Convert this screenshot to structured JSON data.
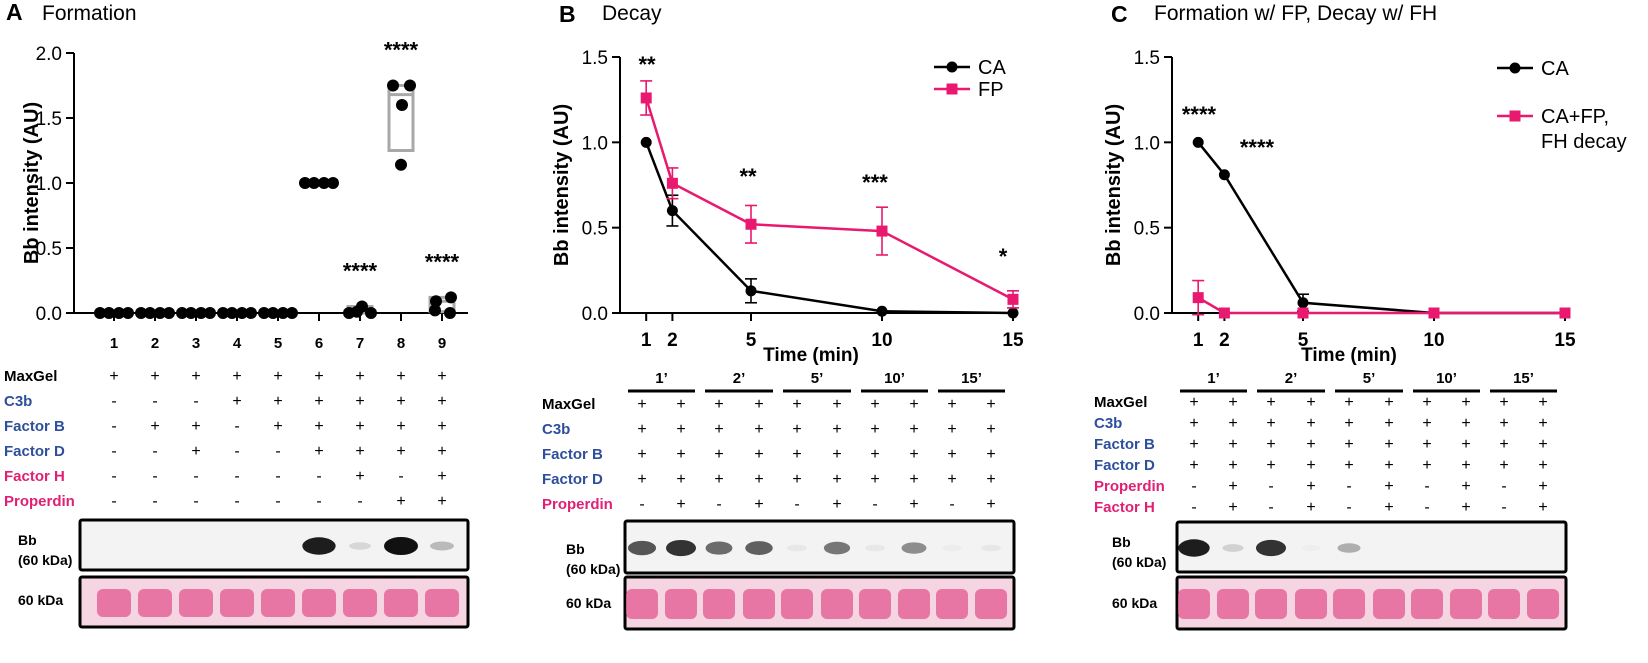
{
  "colors": {
    "black": "#000000",
    "magenta": "#e8196e",
    "blue": "#2e4f9c",
    "pink": "#e02075",
    "gray": "#a8a8a8",
    "pinkband": "#e3558f"
  },
  "panels": [
    {
      "letter": "A",
      "title": "Formation"
    },
    {
      "letter": "B",
      "title": "Decay"
    },
    {
      "letter": "C",
      "title": "Formation w/ FP, Decay w/ FH"
    }
  ],
  "chart_data": [
    {
      "type": "scatter",
      "title": "Formation",
      "xlabel": "",
      "ylabel": "Bb intensity (AU)",
      "ylim": [
        0,
        2.0
      ],
      "yticks": [
        "0.0",
        "0.5",
        "1.0",
        "1.5",
        "2.0"
      ],
      "categories": [
        "1",
        "2",
        "3",
        "4",
        "5",
        "6",
        "7",
        "8",
        "9"
      ],
      "points": [
        [
          0,
          0,
          0,
          0
        ],
        [
          0,
          0,
          0,
          0
        ],
        [
          0,
          0,
          0,
          0
        ],
        [
          0,
          0,
          0,
          0
        ],
        [
          0,
          0,
          0,
          0
        ],
        [
          1,
          1,
          1,
          1
        ],
        [
          0.05,
          0,
          0.01,
          0
        ],
        [
          1.75,
          1.75,
          1.6,
          1.14
        ],
        [
          0.09,
          0.12,
          0,
          0.02
        ]
      ],
      "boxes": [
        null,
        null,
        null,
        null,
        null,
        null,
        [
          0,
          0.01,
          0.05
        ],
        [
          1.25,
          1.68,
          1.75
        ],
        [
          0.01,
          0.09,
          0.12
        ]
      ],
      "significance": [
        "",
        "",
        "",
        "",
        "",
        "",
        "****",
        "****",
        "****"
      ]
    },
    {
      "type": "line",
      "title": "Decay",
      "xlabel": "Time (min)",
      "ylabel": "Bb intensity (AU)",
      "ylim": [
        0,
        1.5
      ],
      "xlim": [
        0,
        15
      ],
      "yticks": [
        "0.0",
        "0.5",
        "1.0",
        "1.5"
      ],
      "xticks": [
        "1",
        "2",
        "5",
        "10",
        "15"
      ],
      "x": [
        1,
        2,
        5,
        10,
        15
      ],
      "series": [
        {
          "name": "CA",
          "values": [
            1.0,
            0.6,
            0.13,
            0.01,
            0.0
          ],
          "err": [
            0,
            0.09,
            0.07,
            0,
            0
          ]
        },
        {
          "name": "FP",
          "values": [
            1.26,
            0.76,
            0.52,
            0.48,
            0.08
          ],
          "err": [
            0.1,
            0.09,
            0.11,
            0.14,
            0.05
          ]
        }
      ],
      "significance": [
        "**",
        "",
        "**",
        "***",
        "*"
      ]
    },
    {
      "type": "line",
      "title": "Formation w/ FP, Decay w/ FH",
      "xlabel": "Time (min)",
      "ylabel": "Bb intensity (AU)",
      "ylim": [
        0,
        1.5
      ],
      "xlim": [
        0,
        15
      ],
      "yticks": [
        "0.0",
        "0.5",
        "1.0",
        "1.5"
      ],
      "xticks": [
        "1",
        "2",
        "5",
        "10",
        "15"
      ],
      "x": [
        1,
        2,
        5,
        10,
        15
      ],
      "series": [
        {
          "name": "CA",
          "values": [
            1.0,
            0.81,
            0.06,
            0.0,
            0.0
          ],
          "err": [
            0,
            0,
            0.05,
            0,
            0
          ]
        },
        {
          "name": "CA+FP, FH decay",
          "values": [
            0.09,
            0.0,
            0.0,
            0.0,
            0.0
          ],
          "err": [
            0.1,
            0,
            0,
            0,
            0
          ]
        }
      ],
      "significance": [
        "****",
        "****",
        "",
        "",
        ""
      ]
    }
  ],
  "tableA": {
    "rows": [
      {
        "label": "MaxGel",
        "color": "black",
        "cells": [
          "+",
          "+",
          "+",
          "+",
          "+",
          "+",
          "+",
          "+",
          "+"
        ]
      },
      {
        "label": "C3b",
        "color": "blue",
        "cells": [
          "-",
          "-",
          "-",
          "+",
          "+",
          "+",
          "+",
          "+",
          "+"
        ]
      },
      {
        "label": "Factor B",
        "color": "blue",
        "cells": [
          "-",
          "+",
          "+",
          "-",
          "+",
          "+",
          "+",
          "+",
          "+"
        ]
      },
      {
        "label": "Factor D",
        "color": "blue",
        "cells": [
          "-",
          "-",
          "+",
          "-",
          "-",
          "+",
          "+",
          "+",
          "+"
        ]
      },
      {
        "label": "Factor H",
        "color": "magenta",
        "cells": [
          "-",
          "-",
          "-",
          "-",
          "-",
          "-",
          "+",
          "-",
          "+"
        ]
      },
      {
        "label": "Properdin",
        "color": "magenta",
        "cells": [
          "-",
          "-",
          "-",
          "-",
          "-",
          "-",
          "-",
          "+",
          "+"
        ]
      }
    ]
  },
  "tableB": {
    "timepoints": [
      "1’",
      "2’",
      "5’",
      "10’",
      "15’"
    ],
    "rows": [
      {
        "label": "MaxGel",
        "color": "black",
        "cells": [
          "+",
          "+",
          "+",
          "+",
          "+",
          "+",
          "+",
          "+",
          "+",
          "+"
        ]
      },
      {
        "label": "C3b",
        "color": "blue",
        "cells": [
          "+",
          "+",
          "+",
          "+",
          "+",
          "+",
          "+",
          "+",
          "+",
          "+"
        ]
      },
      {
        "label": "Factor B",
        "color": "blue",
        "cells": [
          "+",
          "+",
          "+",
          "+",
          "+",
          "+",
          "+",
          "+",
          "+",
          "+"
        ]
      },
      {
        "label": "Factor D",
        "color": "blue",
        "cells": [
          "+",
          "+",
          "+",
          "+",
          "+",
          "+",
          "+",
          "+",
          "+",
          "+"
        ]
      },
      {
        "label": "Properdin",
        "color": "magenta",
        "cells": [
          "-",
          "+",
          "-",
          "+",
          "-",
          "+",
          "-",
          "+",
          "-",
          "+"
        ]
      }
    ]
  },
  "tableC": {
    "timepoints": [
      "1’",
      "2’",
      "5’",
      "10’",
      "15’"
    ],
    "rows": [
      {
        "label": "MaxGel",
        "color": "black",
        "cells": [
          "+",
          "+",
          "+",
          "+",
          "+",
          "+",
          "+",
          "+",
          "+",
          "+"
        ]
      },
      {
        "label": "C3b",
        "color": "blue",
        "cells": [
          "+",
          "+",
          "+",
          "+",
          "+",
          "+",
          "+",
          "+",
          "+",
          "+"
        ]
      },
      {
        "label": "Factor B",
        "color": "blue",
        "cells": [
          "+",
          "+",
          "+",
          "+",
          "+",
          "+",
          "+",
          "+",
          "+",
          "+"
        ]
      },
      {
        "label": "Factor D",
        "color": "blue",
        "cells": [
          "+",
          "+",
          "+",
          "+",
          "+",
          "+",
          "+",
          "+",
          "+",
          "+"
        ]
      },
      {
        "label": "Properdin",
        "color": "magenta",
        "cells": [
          "-",
          "+",
          "-",
          "+",
          "-",
          "+",
          "-",
          "+",
          "-",
          "+"
        ]
      },
      {
        "label": "Factor H",
        "color": "magenta",
        "cells": [
          "-",
          "+",
          "-",
          "+",
          "-",
          "+",
          "-",
          "+",
          "-",
          "+"
        ]
      }
    ]
  },
  "blots": {
    "bb_label_1": "Bb",
    "bb_label_2": "(60 kDa)",
    "kda_label": "60 kDa",
    "A_bands": [
      0,
      0,
      0,
      0,
      0,
      0.95,
      0.12,
      1.0,
      0.25
    ],
    "B_bands": [
      0.7,
      0.85,
      0.6,
      0.65,
      0.05,
      0.55,
      0.05,
      0.45,
      0.03,
      0.05
    ],
    "C_bands": [
      0.95,
      0.15,
      0.85,
      0.02,
      0.3,
      0.0,
      0.0,
      0.0,
      0.0,
      0.0
    ]
  }
}
